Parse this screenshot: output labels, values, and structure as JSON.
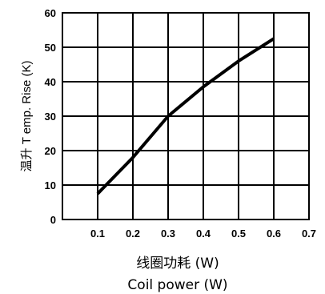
{
  "chart_data": {
    "type": "line",
    "title": "",
    "xlabel": "线圈功耗 (W)",
    "xlabel_en": "Coil power (W)",
    "ylabel": "温升 T emp. Rise (K)",
    "xlim": [
      0,
      0.7
    ],
    "ylim": [
      0,
      60
    ],
    "xticks": [
      "0.1",
      "0.2",
      "0.3",
      "0.4",
      "0.5",
      "0.6",
      "0.7"
    ],
    "yticks": [
      "0",
      "10",
      "20",
      "30",
      "40",
      "50",
      "60"
    ],
    "grid": true,
    "series": [
      {
        "x": [
          0.1,
          0.2,
          0.3,
          0.4,
          0.5,
          0.6
        ],
        "y": [
          7.5,
          18,
          30,
          38.5,
          46,
          52.5
        ]
      }
    ],
    "line_color": "#000000"
  }
}
